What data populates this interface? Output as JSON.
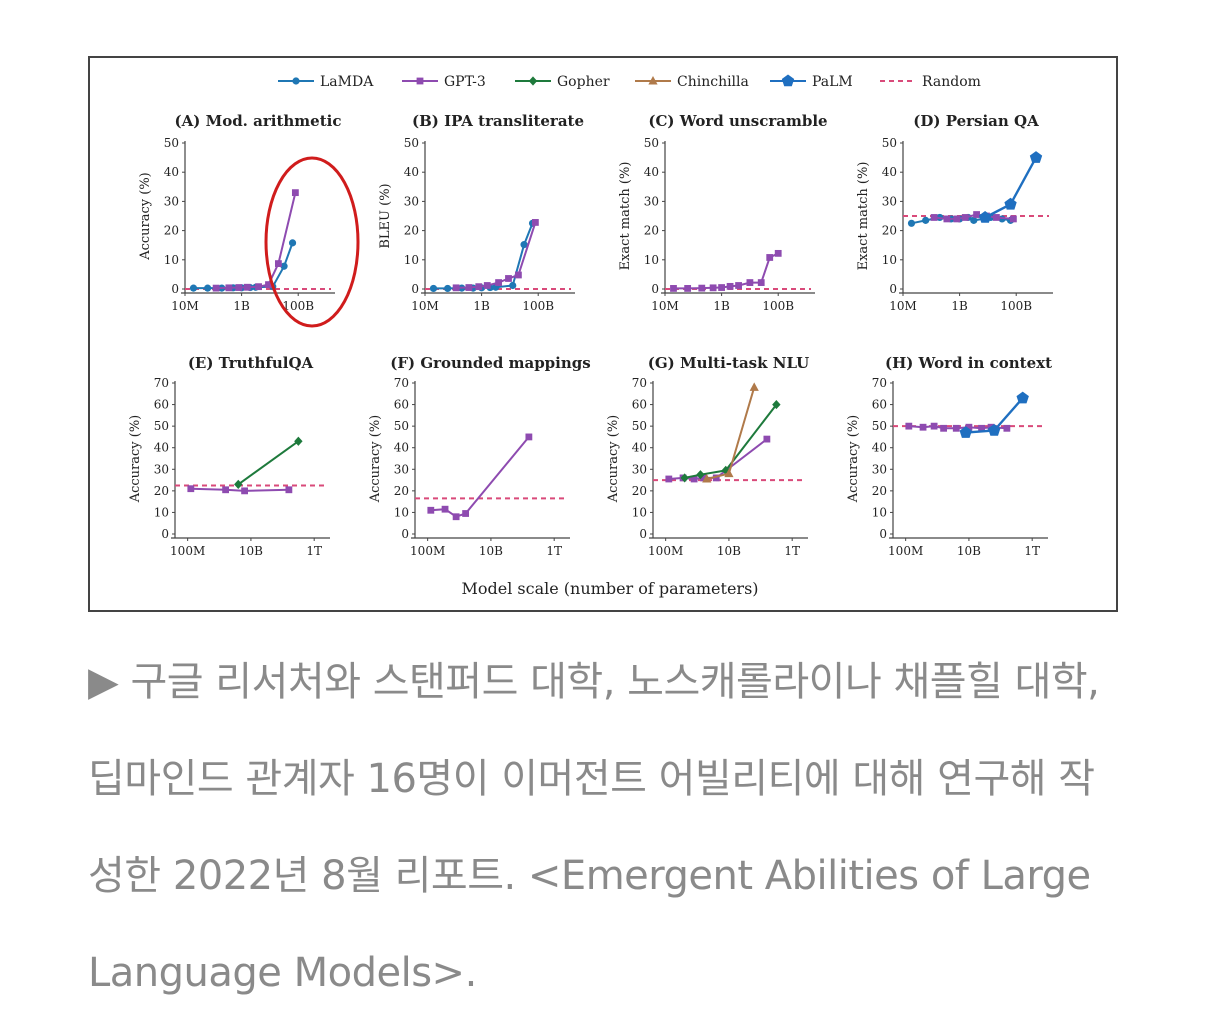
{
  "legend": [
    {
      "name": "LaMDA",
      "color": "#1f77b4",
      "marker": "circle"
    },
    {
      "name": "GPT-3",
      "color": "#8e4bb0",
      "marker": "square"
    },
    {
      "name": "Gopher",
      "color": "#1e7a3c",
      "marker": "diamond"
    },
    {
      "name": "Chinchilla",
      "color": "#b07a4a",
      "marker": "triangle"
    },
    {
      "name": "PaLM",
      "color": "#1f6fc0",
      "marker": "pentagon"
    },
    {
      "name": "Random",
      "color": "#d94a7a",
      "marker": "dashed"
    }
  ],
  "global_xlabel": "Model scale (number of parameters)",
  "annotation": {
    "type": "ellipse",
    "color": "#d01c1c",
    "panel": 0
  },
  "chart_data": [
    {
      "type": "line",
      "title": "(A) Mod. arithmetic",
      "ylabel": "Accuracy (%)",
      "xscale": "log",
      "xlim": [
        7,
        12.3
      ],
      "ylim": [
        0,
        50
      ],
      "xticks": [
        {
          "v": 7,
          "label": "10M"
        },
        {
          "v": 9,
          "label": "1B"
        },
        {
          "v": 11,
          "label": "100B"
        }
      ],
      "yticks": [
        0,
        10,
        20,
        30,
        40,
        50
      ],
      "random": 0,
      "series": [
        {
          "name": "LaMDA",
          "x": [
            7.3,
            7.8,
            8.3,
            8.7,
            9,
            9.3,
            9.5,
            10.1,
            10.5,
            10.8
          ],
          "y": [
            0.3,
            0.3,
            0.3,
            0.4,
            0.4,
            0.5,
            0.6,
            0.8,
            7.8,
            15.8
          ]
        },
        {
          "name": "GPT-3",
          "x": [
            8.1,
            8.55,
            8.9,
            9.2,
            9.6,
            9.95,
            10.3,
            10.9
          ],
          "y": [
            0.3,
            0.4,
            0.5,
            0.6,
            0.8,
            1.5,
            8.7,
            33
          ]
        }
      ]
    },
    {
      "type": "line",
      "title": "(B) IPA transliterate",
      "ylabel": "BLEU (%)",
      "xscale": "log",
      "xlim": [
        7,
        12.3
      ],
      "ylim": [
        0,
        50
      ],
      "xticks": [
        {
          "v": 7,
          "label": "10M"
        },
        {
          "v": 9,
          "label": "1B"
        },
        {
          "v": 11,
          "label": "100B"
        }
      ],
      "yticks": [
        0,
        10,
        20,
        30,
        40,
        50
      ],
      "random": 0,
      "series": [
        {
          "name": "LaMDA",
          "x": [
            7.3,
            7.8,
            8.3,
            8.7,
            9,
            9.3,
            9.5,
            10.1,
            10.5,
            10.8
          ],
          "y": [
            0.2,
            0.2,
            0.3,
            0.3,
            0.4,
            0.5,
            0.6,
            1.2,
            15.2,
            22.5
          ]
        },
        {
          "name": "GPT-3",
          "x": [
            8.1,
            8.55,
            8.9,
            9.2,
            9.6,
            9.95,
            10.3,
            10.9
          ],
          "y": [
            0.4,
            0.5,
            0.8,
            1.2,
            2.2,
            3.6,
            4.8,
            22.8
          ]
        }
      ]
    },
    {
      "type": "line",
      "title": "(C) Word unscramble",
      "ylabel": "Exact match (%)",
      "xscale": "log",
      "xlim": [
        7,
        12.3
      ],
      "ylim": [
        0,
        50
      ],
      "xticks": [
        {
          "v": 7,
          "label": "10M"
        },
        {
          "v": 9,
          "label": "1B"
        },
        {
          "v": 11,
          "label": "100B"
        }
      ],
      "yticks": [
        0,
        10,
        20,
        30,
        40,
        50
      ],
      "random": 0,
      "series": [
        {
          "name": "GPT-3",
          "x": [
            7.3,
            7.8,
            8.3,
            8.7,
            9,
            9.3,
            9.6,
            10.0,
            10.4,
            10.7,
            11.0
          ],
          "y": [
            0.2,
            0.2,
            0.3,
            0.4,
            0.5,
            0.9,
            1.2,
            2.2,
            2.2,
            10.8,
            12.2
          ]
        }
      ]
    },
    {
      "type": "line",
      "title": "(D) Persian QA",
      "ylabel": "Exact match (%)",
      "xscale": "log",
      "xlim": [
        7,
        12.3
      ],
      "ylim": [
        0,
        50
      ],
      "xticks": [
        {
          "v": 7,
          "label": "10M"
        },
        {
          "v": 9,
          "label": "1B"
        },
        {
          "v": 11,
          "label": "100B"
        }
      ],
      "yticks": [
        0,
        10,
        20,
        30,
        40,
        50
      ],
      "random": 25,
      "series": [
        {
          "name": "LaMDA",
          "x": [
            7.3,
            7.8,
            8.3,
            8.7,
            9,
            9.3,
            9.5,
            10.1,
            10.5,
            10.8
          ],
          "y": [
            22.5,
            23.5,
            24.5,
            24,
            24,
            24.5,
            23.5,
            24.5,
            24,
            23.5
          ]
        },
        {
          "name": "GPT-3",
          "x": [
            8.1,
            8.55,
            8.9,
            9.2,
            9.6,
            9.95,
            10.3,
            10.9
          ],
          "y": [
            24.5,
            24,
            24,
            24.5,
            25.5,
            25,
            24.5,
            24
          ]
        },
        {
          "name": "PaLM",
          "x": [
            9.9,
            10.8,
            11.7
          ],
          "y": [
            24.5,
            29,
            45
          ]
        }
      ]
    },
    {
      "type": "line",
      "title": "(E) TruthfulQA",
      "ylabel": "Accuracy (%)",
      "xscale": "log",
      "xlim": [
        7.6,
        12.5
      ],
      "ylim": [
        0,
        70
      ],
      "xticks": [
        {
          "v": 8,
          "label": "100M"
        },
        {
          "v": 10,
          "label": "10B"
        },
        {
          "v": 12,
          "label": "1T"
        }
      ],
      "yticks": [
        0,
        10,
        20,
        30,
        40,
        50,
        60,
        70
      ],
      "random": 22.5,
      "series": [
        {
          "name": "GPT-3",
          "x": [
            8.1,
            9.2,
            9.8,
            11.2
          ],
          "y": [
            21,
            20.5,
            20,
            20.5
          ]
        },
        {
          "name": "Gopher",
          "x": [
            9.6,
            11.5
          ],
          "y": [
            23,
            43
          ]
        }
      ]
    },
    {
      "type": "line",
      "title": "(F) Grounded mappings",
      "ylabel": "Accuracy (%)",
      "xscale": "log",
      "xlim": [
        7.6,
        12.5
      ],
      "ylim": [
        0,
        70
      ],
      "xticks": [
        {
          "v": 8,
          "label": "100M"
        },
        {
          "v": 10,
          "label": "10B"
        },
        {
          "v": 12,
          "label": "1T"
        }
      ],
      "yticks": [
        0,
        10,
        20,
        30,
        40,
        50,
        60,
        70
      ],
      "random": 16.5,
      "series": [
        {
          "name": "GPT-3",
          "x": [
            8.1,
            8.55,
            8.9,
            9.2,
            11.2
          ],
          "y": [
            11,
            11.5,
            8,
            9.5,
            45
          ]
        }
      ]
    },
    {
      "type": "line",
      "title": "(G) Multi-task NLU",
      "ylabel": "Accuracy (%)",
      "xscale": "log",
      "xlim": [
        7.6,
        12.5
      ],
      "ylim": [
        0,
        70
      ],
      "xticks": [
        {
          "v": 8,
          "label": "100M"
        },
        {
          "v": 10,
          "label": "10B"
        },
        {
          "v": 12,
          "label": "1T"
        }
      ],
      "yticks": [
        0,
        10,
        20,
        30,
        40,
        50,
        60,
        70
      ],
      "random": 25,
      "series": [
        {
          "name": "GPT-3",
          "x": [
            8.1,
            8.55,
            8.9,
            9.2,
            9.6,
            11.2
          ],
          "y": [
            25.5,
            26,
            25.5,
            26,
            26,
            44
          ]
        },
        {
          "name": "Gopher",
          "x": [
            8.6,
            9.1,
            9.9,
            11.5
          ],
          "y": [
            26,
            27.5,
            29.5,
            60
          ]
        },
        {
          "name": "Chinchilla",
          "x": [
            9.3,
            10.0,
            10.8
          ],
          "y": [
            25.5,
            28,
            68
          ]
        }
      ]
    },
    {
      "type": "line",
      "title": "(H) Word in context",
      "ylabel": "Accuracy (%)",
      "xscale": "log",
      "xlim": [
        7.6,
        12.5
      ],
      "ylim": [
        0,
        70
      ],
      "xticks": [
        {
          "v": 8,
          "label": "100M"
        },
        {
          "v": 10,
          "label": "10B"
        },
        {
          "v": 12,
          "label": "1T"
        }
      ],
      "yticks": [
        0,
        10,
        20,
        30,
        40,
        50,
        60,
        70
      ],
      "random": 50,
      "series": [
        {
          "name": "GPT-3",
          "x": [
            8.1,
            8.55,
            8.9,
            9.2,
            9.6,
            10.0,
            10.4,
            10.7,
            11.2
          ],
          "y": [
            50,
            49.5,
            50,
            49,
            49,
            49.5,
            49,
            49.5,
            49
          ]
        },
        {
          "name": "PaLM",
          "x": [
            9.9,
            10.8,
            11.7
          ],
          "y": [
            47,
            48,
            63
          ]
        }
      ]
    }
  ],
  "caption": {
    "marker": "▶",
    "text": " 구글 리서처와 스탠퍼드 대학, 노스캐롤라이나 채플힐 대학, 딥마인드 관계자 16명이 이머전트 어빌리티에 대해 연구해 작성한 2022년 8월 리포트. <Emergent Abilities of Large Language Models>."
  }
}
